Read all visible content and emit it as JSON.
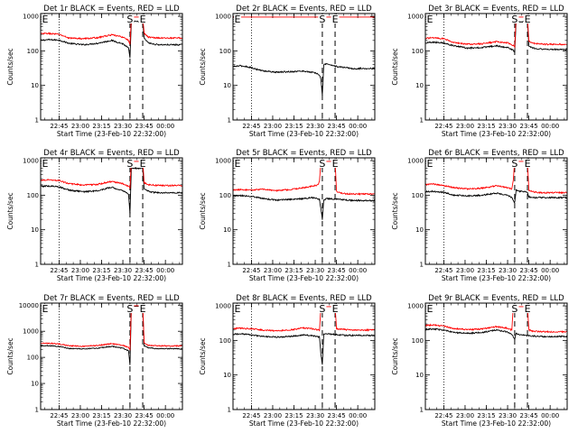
{
  "figure": {
    "type": "line",
    "y_scale": "log",
    "colors": {
      "events": "#000000",
      "lld": "#ff0000",
      "axes": "#000000",
      "background": "#ffffff"
    },
    "ylabel": "Counts/sec",
    "xlabel": "Start Time (23-Feb-10 22:32:00)",
    "x_tick_labels": [
      "22:45",
      "23:00",
      "23:15",
      "23:30",
      "23:45",
      "00:00"
    ],
    "x_tick_minutes": [
      13,
      28,
      43,
      58,
      73,
      88
    ],
    "x_range_minutes": [
      0,
      100
    ],
    "vertical_markers": {
      "dotted_minute": 13,
      "dashed_s_minute": 63,
      "dashed_e_minute": 72,
      "s_label": "S",
      "e_label": "E",
      "left_label": "E"
    }
  },
  "chart_data": [
    {
      "type": "line",
      "title": "Det 1r BLACK = Events, RED = LLD",
      "xlabel": "Start Time (23-Feb-10 22:32:00)",
      "ylabel": "Counts/sec",
      "ylim": [
        1,
        1200
      ],
      "y_ticks": [
        1,
        10,
        100,
        1000
      ],
      "y_tick_labels": [
        "1",
        "10",
        "100",
        "1000"
      ],
      "series": [
        {
          "color": "#000000",
          "x": [
            0,
            5,
            13,
            20,
            30,
            40,
            50,
            58,
            62,
            63,
            64,
            67,
            71,
            72,
            73,
            76,
            80,
            85,
            88,
            95,
            100
          ],
          "y": [
            200,
            210,
            205,
            165,
            150,
            165,
            200,
            160,
            120,
            60,
            700,
            700,
            700,
            700,
            230,
            170,
            155,
            150,
            150,
            150,
            150
          ]
        },
        {
          "color": "#ff0000",
          "x": [
            0,
            5,
            13,
            20,
            30,
            40,
            50,
            58,
            62,
            63,
            64,
            67,
            71,
            72,
            73,
            76,
            80,
            85,
            88,
            95,
            100
          ],
          "y": [
            310,
            320,
            300,
            235,
            225,
            240,
            290,
            250,
            200,
            150,
            950,
            950,
            950,
            950,
            320,
            250,
            240,
            235,
            235,
            235,
            235
          ]
        }
      ]
    },
    {
      "type": "line",
      "title": "Det 2r BLACK = Events, RED = LLD",
      "xlabel": "Start Time (23-Feb-10 22:32:00)",
      "ylabel": "Counts/sec",
      "ylim": [
        1,
        1200
      ],
      "y_ticks": [
        1,
        10,
        100,
        1000
      ],
      "y_tick_labels": [
        "1",
        "10",
        "100",
        "1000"
      ],
      "series": [
        {
          "color": "#000000",
          "x": [
            0,
            5,
            10,
            20,
            30,
            40,
            50,
            58,
            61,
            62,
            63,
            64,
            66,
            70,
            75,
            80,
            85,
            90,
            95,
            100
          ],
          "y": [
            35,
            37,
            35,
            27,
            24,
            25,
            26,
            23,
            20,
            15,
            5,
            40,
            42,
            38,
            34,
            33,
            30,
            31,
            31,
            31
          ]
        },
        {
          "color": "#ff0000",
          "x": [
            0,
            20,
            40,
            60,
            62,
            63,
            64,
            66,
            80,
            100
          ],
          "y": [
            950,
            950,
            950,
            950,
            950,
            950,
            950,
            950,
            950,
            950
          ]
        }
      ]
    },
    {
      "type": "line",
      "title": "Det 3r BLACK = Events, RED = LLD",
      "xlabel": "Start Time (23-Feb-10 22:32:00)",
      "ylabel": "Counts/sec",
      "ylim": [
        1,
        1200
      ],
      "y_ticks": [
        1,
        10,
        100,
        1000
      ],
      "y_tick_labels": [
        "1",
        "10",
        "100",
        "1000"
      ],
      "series": [
        {
          "color": "#000000",
          "x": [
            0,
            5,
            13,
            20,
            30,
            40,
            50,
            58,
            62,
            63,
            64,
            67,
            71,
            72,
            73,
            76,
            80,
            85,
            88,
            95,
            100
          ],
          "y": [
            170,
            180,
            170,
            140,
            120,
            125,
            140,
            125,
            105,
            90,
            700,
            700,
            700,
            700,
            140,
            120,
            115,
            110,
            110,
            110,
            110
          ]
        },
        {
          "color": "#ff0000",
          "x": [
            0,
            5,
            13,
            20,
            30,
            40,
            50,
            58,
            62,
            63,
            64,
            67,
            71,
            72,
            73,
            76,
            80,
            85,
            88,
            95,
            100
          ],
          "y": [
            230,
            240,
            225,
            175,
            155,
            160,
            185,
            170,
            145,
            130,
            950,
            950,
            950,
            950,
            190,
            165,
            160,
            155,
            155,
            155,
            155
          ]
        }
      ]
    },
    {
      "type": "line",
      "title": "Det 4r BLACK = Events, RED = LLD",
      "xlabel": "Start Time (23-Feb-10 22:32:00)",
      "ylabel": "Counts/sec",
      "ylim": [
        1,
        1200
      ],
      "y_ticks": [
        1,
        10,
        100,
        1000
      ],
      "y_tick_labels": [
        "1",
        "10",
        "100",
        "1000"
      ],
      "series": [
        {
          "color": "#000000",
          "x": [
            0,
            5,
            13,
            20,
            30,
            40,
            50,
            58,
            62,
            63,
            64,
            67,
            71,
            72,
            73,
            76,
            80,
            85,
            88,
            95,
            100
          ],
          "y": [
            180,
            185,
            175,
            140,
            125,
            135,
            170,
            135,
            110,
            30,
            600,
            600,
            600,
            600,
            150,
            130,
            120,
            118,
            118,
            118,
            118
          ]
        },
        {
          "color": "#ff0000",
          "x": [
            0,
            5,
            13,
            20,
            30,
            40,
            50,
            58,
            62,
            63,
            64,
            67,
            71,
            72,
            73,
            76,
            80,
            85,
            88,
            95,
            100
          ],
          "y": [
            270,
            280,
            265,
            215,
            195,
            205,
            250,
            215,
            180,
            160,
            950,
            950,
            950,
            950,
            230,
            200,
            195,
            190,
            190,
            190,
            190
          ]
        }
      ]
    },
    {
      "type": "line",
      "title": "Det 5r BLACK = Events, RED = LLD",
      "xlabel": "Start Time (23-Feb-10 22:32:00)",
      "ylabel": "Counts/sec",
      "ylim": [
        1,
        1200
      ],
      "y_ticks": [
        1,
        10,
        100,
        1000
      ],
      "y_tick_labels": [
        "1",
        "10",
        "100",
        "1000"
      ],
      "series": [
        {
          "color": "#000000",
          "x": [
            0,
            5,
            13,
            20,
            30,
            40,
            50,
            55,
            58,
            61,
            62,
            63,
            64,
            66,
            70,
            75,
            80,
            85,
            90,
            95,
            100
          ],
          "y": [
            95,
            97,
            92,
            82,
            72,
            75,
            80,
            85,
            82,
            75,
            40,
            20,
            70,
            80,
            78,
            76,
            72,
            70,
            70,
            70,
            70
          ]
        },
        {
          "color": "#ff0000",
          "x": [
            0,
            5,
            13,
            20,
            30,
            40,
            50,
            58,
            60,
            61,
            62,
            63,
            67,
            71,
            72,
            73,
            76,
            80,
            85,
            88,
            95,
            100
          ],
          "y": [
            140,
            145,
            140,
            150,
            135,
            145,
            165,
            190,
            200,
            260,
            950,
            950,
            950,
            950,
            950,
            130,
            115,
            110,
            108,
            108,
            108,
            108
          ]
        }
      ]
    },
    {
      "type": "line",
      "title": "Det 6r BLACK = Events, RED = LLD",
      "xlabel": "Start Time (23-Feb-10 22:32:00)",
      "ylabel": "Counts/sec",
      "ylim": [
        1,
        1200
      ],
      "y_ticks": [
        1,
        10,
        100,
        1000
      ],
      "y_tick_labels": [
        "1",
        "10",
        "100",
        "1000"
      ],
      "series": [
        {
          "color": "#000000",
          "x": [
            0,
            5,
            13,
            20,
            30,
            40,
            50,
            58,
            61,
            62,
            63,
            64,
            66,
            70,
            72,
            73,
            76,
            80,
            85,
            90,
            95,
            100
          ],
          "y": [
            125,
            130,
            120,
            100,
            95,
            100,
            115,
            100,
            85,
            70,
            60,
            140,
            130,
            125,
            120,
            90,
            85,
            85,
            85,
            85,
            85,
            85
          ]
        },
        {
          "color": "#ff0000",
          "x": [
            0,
            5,
            13,
            20,
            30,
            40,
            50,
            58,
            61,
            62,
            63,
            64,
            67,
            71,
            72,
            73,
            76,
            80,
            85,
            88,
            95,
            100
          ],
          "y": [
            200,
            210,
            190,
            165,
            150,
            160,
            185,
            165,
            150,
            280,
            950,
            950,
            950,
            950,
            950,
            140,
            125,
            120,
            118,
            118,
            118,
            118
          ]
        }
      ]
    },
    {
      "type": "line",
      "title": "Det 7r BLACK = Events, RED = LLD",
      "xlabel": "Start Time (23-Feb-10 22:32:00)",
      "ylabel": "Counts/sec",
      "ylim": [
        1,
        12000
      ],
      "y_ticks": [
        1,
        10,
        100,
        1000,
        10000
      ],
      "y_tick_labels": [
        "1",
        "10",
        "100",
        "1000",
        "10000"
      ],
      "series": [
        {
          "color": "#000000",
          "x": [
            0,
            5,
            13,
            20,
            30,
            40,
            50,
            58,
            62,
            63,
            64,
            67,
            71,
            72,
            73,
            76,
            80,
            85,
            88,
            95,
            100
          ],
          "y": [
            270,
            280,
            265,
            220,
            210,
            225,
            265,
            225,
            180,
            50,
            9000,
            9000,
            9000,
            9000,
            280,
            230,
            220,
            215,
            215,
            215,
            215
          ]
        },
        {
          "color": "#ff0000",
          "x": [
            0,
            5,
            13,
            20,
            30,
            40,
            50,
            58,
            62,
            63,
            64,
            67,
            71,
            72,
            73,
            76,
            80,
            85,
            88,
            95,
            100
          ],
          "y": [
            340,
            350,
            330,
            280,
            265,
            285,
            335,
            290,
            240,
            200,
            9500,
            9500,
            9500,
            9500,
            350,
            290,
            280,
            275,
            275,
            275,
            275
          ]
        }
      ]
    },
    {
      "type": "line",
      "title": "Det 8r BLACK = Events, RED = LLD",
      "xlabel": "Start Time (23-Feb-10 22:32:00)",
      "ylabel": "Counts/sec",
      "ylim": [
        1,
        1200
      ],
      "y_ticks": [
        1,
        10,
        100,
        1000
      ],
      "y_tick_labels": [
        "1",
        "10",
        "100",
        "1000"
      ],
      "series": [
        {
          "color": "#000000",
          "x": [
            0,
            5,
            13,
            20,
            30,
            40,
            50,
            58,
            61,
            62,
            63,
            64,
            66,
            70,
            75,
            80,
            85,
            90,
            95,
            100
          ],
          "y": [
            150,
            155,
            145,
            130,
            125,
            130,
            145,
            135,
            125,
            40,
            20,
            150,
            155,
            150,
            145,
            140,
            140,
            140,
            140,
            140
          ]
        },
        {
          "color": "#ff0000",
          "x": [
            0,
            5,
            13,
            20,
            30,
            40,
            50,
            58,
            61,
            62,
            63,
            67,
            71,
            72,
            73,
            76,
            80,
            85,
            88,
            95,
            100
          ],
          "y": [
            220,
            225,
            215,
            200,
            190,
            200,
            230,
            210,
            200,
            950,
            950,
            950,
            950,
            950,
            220,
            210,
            205,
            200,
            200,
            200,
            200
          ]
        }
      ]
    },
    {
      "type": "line",
      "title": "Det 9r BLACK = Events, RED = LLD",
      "xlabel": "Start Time (23-Feb-10 22:32:00)",
      "ylabel": "Counts/sec",
      "ylim": [
        1,
        1200
      ],
      "y_ticks": [
        1,
        10,
        100,
        1000
      ],
      "y_tick_labels": [
        "1",
        "10",
        "100",
        "1000"
      ],
      "series": [
        {
          "color": "#000000",
          "x": [
            0,
            5,
            13,
            20,
            30,
            40,
            50,
            58,
            61,
            62,
            63,
            64,
            66,
            70,
            75,
            80,
            85,
            90,
            95,
            100
          ],
          "y": [
            210,
            215,
            200,
            170,
            160,
            170,
            200,
            175,
            150,
            130,
            110,
            160,
            150,
            140,
            135,
            130,
            130,
            130,
            130,
            130
          ]
        },
        {
          "color": "#ff0000",
          "x": [
            0,
            5,
            13,
            20,
            30,
            40,
            50,
            58,
            61,
            62,
            63,
            67,
            71,
            72,
            73,
            76,
            80,
            85,
            88,
            95,
            100
          ],
          "y": [
            270,
            280,
            260,
            220,
            205,
            215,
            250,
            225,
            200,
            950,
            950,
            950,
            950,
            950,
            200,
            185,
            180,
            178,
            178,
            178,
            178
          ]
        }
      ]
    }
  ]
}
